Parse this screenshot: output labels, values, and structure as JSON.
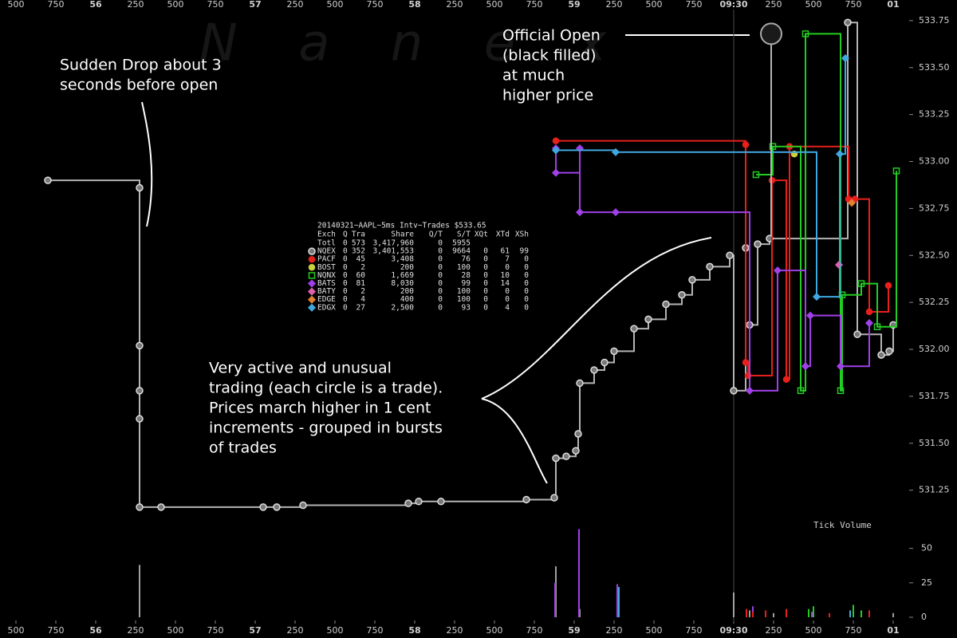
{
  "chart_data": [
    {
      "type": "scatter",
      "step": true,
      "grid": false,
      "watermark": "N a n e x",
      "xlim": [
        55.4,
        61.1
      ],
      "ylim": [
        531.1,
        533.86
      ],
      "xticks": [
        {
          "value": 55.5,
          "label": "500"
        },
        {
          "value": 55.75,
          "label": "750"
        },
        {
          "value": 56,
          "label": "56"
        },
        {
          "value": 56.25,
          "label": "250"
        },
        {
          "value": 56.5,
          "label": "500"
        },
        {
          "value": 56.75,
          "label": "750"
        },
        {
          "value": 57,
          "label": "57"
        },
        {
          "value": 57.25,
          "label": "250"
        },
        {
          "value": 57.5,
          "label": "500"
        },
        {
          "value": 57.75,
          "label": "750"
        },
        {
          "value": 58,
          "label": "58"
        },
        {
          "value": 58.25,
          "label": "250"
        },
        {
          "value": 58.5,
          "label": "500"
        },
        {
          "value": 58.75,
          "label": "750"
        },
        {
          "value": 59,
          "label": "59"
        },
        {
          "value": 59.25,
          "label": "250"
        },
        {
          "value": 59.5,
          "label": "500"
        },
        {
          "value": 59.75,
          "label": "750"
        },
        {
          "value": 60,
          "label": "09:30"
        },
        {
          "value": 60.25,
          "label": "250"
        },
        {
          "value": 60.5,
          "label": "500"
        },
        {
          "value": 60.75,
          "label": "750"
        },
        {
          "value": 61,
          "label": "01"
        }
      ],
      "yticks": [
        531.25,
        {
          "value": 531.5,
          "label": "531.50"
        },
        531.75,
        {
          "value": 532,
          "label": "532.00"
        },
        532.25,
        {
          "value": 532.5,
          "label": "532.50"
        },
        532.75,
        {
          "value": 533,
          "label": "533.00"
        },
        533.25,
        {
          "value": 533.5,
          "label": "533.50"
        },
        533.75
      ],
      "vlines": [
        60
      ],
      "official_open": {
        "x": 60.235,
        "value": 533.68
      },
      "series": [
        {
          "name": "NQEX",
          "color": "#b4b4b4",
          "marker": "big-circle",
          "x": [
            55.7,
            56.275,
            56.275,
            56.275,
            56.275,
            56.275,
            56.41,
            57.05,
            57.135,
            57.3,
            57.96,
            58.025,
            58.165,
            58.7,
            58.875,
            58.885,
            58.95,
            59.01,
            59.025,
            59.035,
            59.125,
            59.19,
            59.25,
            59.375,
            59.465,
            59.575,
            59.675,
            59.74,
            59.85,
            59.975,
            60.0,
            60.075,
            60.1,
            60.15,
            60.225,
            60.715,
            60.775,
            60.925,
            60.975,
            61.0
          ],
          "values": [
            532.9,
            532.86,
            532.02,
            531.78,
            531.63,
            531.16,
            531.16,
            531.16,
            531.16,
            531.17,
            531.18,
            531.19,
            531.19,
            531.2,
            531.21,
            531.42,
            531.43,
            531.46,
            531.55,
            531.82,
            531.89,
            531.93,
            531.99,
            532.11,
            532.16,
            532.24,
            532.29,
            532.37,
            532.44,
            532.5,
            531.78,
            532.54,
            532.13,
            532.56,
            532.59,
            533.74,
            532.08,
            531.97,
            531.99,
            532.13
          ]
        },
        {
          "name": "PACF",
          "color": "#e8201c",
          "marker": "circle",
          "x": [
            58.885,
            60.075,
            60.075,
            60.09,
            60.24,
            60.33,
            60.35,
            60.72,
            60.76,
            60.85,
            60.97
          ],
          "values": [
            533.11,
            533.09,
            531.93,
            531.86,
            532.9,
            531.84,
            533.08,
            532.8,
            532.8,
            532.2,
            532.34
          ]
        },
        {
          "name": "BOST",
          "color": "#c8d23c",
          "marker": "circle",
          "x": [
            60.38
          ],
          "values": [
            533.04
          ]
        },
        {
          "name": "NQNX",
          "color": "#22cc22",
          "marker": "square",
          "x": [
            60.14,
            60.245,
            60.42,
            60.45,
            60.67,
            60.68,
            60.8,
            60.9,
            61.02
          ],
          "values": [
            532.93,
            533.08,
            531.78,
            533.68,
            531.78,
            532.29,
            532.35,
            532.12,
            532.95
          ]
        },
        {
          "name": "BATS",
          "color": "#a040e8",
          "marker": "diamond",
          "x": [
            58.885,
            58.885,
            59.035,
            59.035,
            59.26,
            60.1,
            60.275,
            60.45,
            60.48,
            60.67,
            60.85
          ],
          "values": [
            533.07,
            532.94,
            533.07,
            532.73,
            532.73,
            531.78,
            532.42,
            531.91,
            532.18,
            531.91,
            532.14
          ]
        },
        {
          "name": "BATY",
          "color": "#e060b0",
          "marker": "diamond",
          "x": [
            60.66
          ],
          "values": [
            532.45
          ]
        },
        {
          "name": "EDGE",
          "color": "#e08030",
          "marker": "diamond",
          "x": [
            60.74
          ],
          "values": [
            532.78
          ]
        },
        {
          "name": "EDGX",
          "color": "#40a8e0",
          "marker": "diamond",
          "x": [
            58.885,
            59.26,
            60.52,
            60.665,
            60.7
          ],
          "values": [
            533.06,
            533.05,
            532.28,
            533.04,
            533.55
          ]
        }
      ],
      "stats_table": {
        "title": "20140321~AAPL~5ms Intv~Trades $533.65",
        "header": [
          "Exch",
          "Q",
          "Tra",
          "Share",
          "Q/T",
          "S/T",
          "XQt",
          "XTd",
          "XSh"
        ],
        "rows": [
          [
            "Totl",
            "0",
            "573",
            "3,417,960",
            "0",
            "5955"
          ],
          [
            "NQEX",
            "0",
            "352",
            "3,401,553",
            "0",
            "9664",
            "0",
            "61",
            "99"
          ],
          [
            "PACF",
            "0",
            "45",
            "3,408",
            "0",
            "76",
            "0",
            "7",
            "0"
          ],
          [
            "BOST",
            "0",
            "2",
            "200",
            "0",
            "100",
            "0",
            "0",
            "0"
          ],
          [
            "NQNX",
            "0",
            "60",
            "1,669",
            "0",
            "28",
            "0",
            "10",
            "0"
          ],
          [
            "BATS",
            "0",
            "81",
            "8,030",
            "0",
            "99",
            "0",
            "14",
            "0"
          ],
          [
            "BATY",
            "0",
            "2",
            "200",
            "0",
            "100",
            "0",
            "0",
            "0"
          ],
          [
            "EDGE",
            "0",
            "4",
            "400",
            "0",
            "100",
            "0",
            "0",
            "0"
          ],
          [
            "EDGX",
            "0",
            "27",
            "2,500",
            "0",
            "93",
            "0",
            "4",
            "0"
          ]
        ]
      },
      "annotations": [
        [
          "Sudden Drop about 3",
          "seconds before open"
        ],
        [
          "Official Open",
          "(black filled)",
          "at much",
          "higher price"
        ],
        [
          "Very active and unusual",
          "trading (each circle is a trade).",
          "Prices march higher in 1 cent",
          "increments - grouped in bursts",
          "of trades"
        ]
      ]
    },
    {
      "type": "bar",
      "label": "Tick Volume",
      "ylim": [
        0,
        66
      ],
      "yticks": [
        0,
        25,
        50
      ],
      "series": [
        {
          "color": "#a0a0a0",
          "x": [
            56.275,
            58.885,
            59.035,
            60.0,
            60.1,
            60.25,
            60.5,
            61.0
          ],
          "values": [
            38,
            37,
            6,
            18,
            5,
            3,
            4,
            3
          ]
        },
        {
          "color": "#a040e8",
          "x": [
            58.88,
            59.03,
            59.27,
            60.12,
            60.49
          ],
          "values": [
            25,
            64,
            24,
            8,
            4
          ]
        },
        {
          "color": "#e8201c",
          "x": [
            60.08,
            60.12,
            60.2,
            60.33,
            60.6,
            60.85
          ],
          "values": [
            6,
            4,
            5,
            6,
            3,
            5
          ]
        },
        {
          "color": "#22cc22",
          "x": [
            60.47,
            60.5,
            60.75,
            60.8
          ],
          "values": [
            6,
            8,
            9,
            5
          ]
        },
        {
          "color": "#40a8e0",
          "x": [
            59.28,
            60.73
          ],
          "values": [
            22,
            5
          ]
        }
      ]
    }
  ]
}
